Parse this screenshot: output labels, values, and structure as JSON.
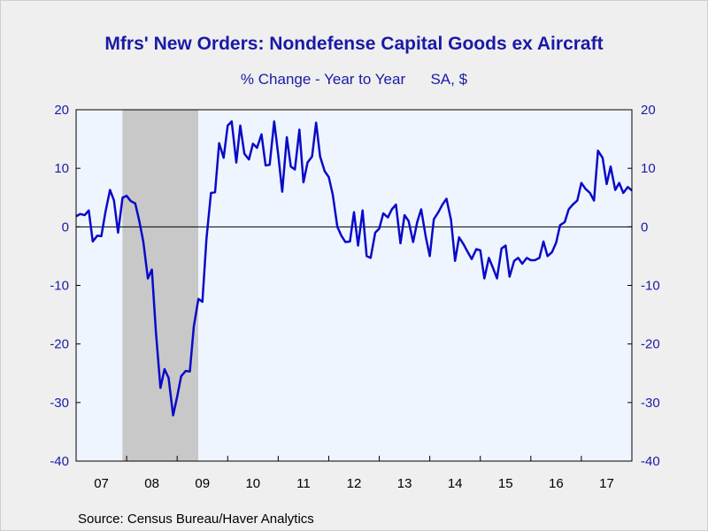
{
  "chart_data": {
    "type": "line",
    "title": "Mfrs' New Orders: Nondefense Capital Goods ex Aircraft",
    "subtitle_left": "% Change - Year to Year",
    "subtitle_right": "SA, $",
    "source": "Source:  Census Bureau/Haver Analytics",
    "ylim": [
      -40,
      20
    ],
    "yticks": [
      20,
      10,
      0,
      -10,
      -20,
      -30,
      -40
    ],
    "xlim": [
      2007.0,
      2018.0
    ],
    "xtick_labels": [
      "07",
      "08",
      "09",
      "10",
      "11",
      "12",
      "13",
      "14",
      "15",
      "16",
      "17"
    ],
    "recession": {
      "start": 2007.917,
      "end": 2009.417
    },
    "grid": false,
    "zero_line": true,
    "colors": {
      "line": "#0a0ac8",
      "text": "#1a1aa6",
      "plot_bg": "#eef5ff",
      "recession": "#c8c8c8"
    },
    "series": [
      {
        "values": [
          [
            2007.0,
            1.8
          ],
          [
            2007.08,
            2.2
          ],
          [
            2007.17,
            2.0
          ],
          [
            2007.25,
            2.8
          ],
          [
            2007.33,
            -2.5
          ],
          [
            2007.42,
            -1.5
          ],
          [
            2007.5,
            -1.6
          ],
          [
            2007.58,
            2.5
          ],
          [
            2007.67,
            6.3
          ],
          [
            2007.75,
            4.5
          ],
          [
            2007.83,
            -1.0
          ],
          [
            2007.92,
            5.0
          ],
          [
            2008.0,
            5.3
          ],
          [
            2008.08,
            4.4
          ],
          [
            2008.17,
            4.0
          ],
          [
            2008.25,
            1.0
          ],
          [
            2008.33,
            -2.5
          ],
          [
            2008.42,
            -8.8
          ],
          [
            2008.5,
            -7.3
          ],
          [
            2008.58,
            -18.0
          ],
          [
            2008.67,
            -27.5
          ],
          [
            2008.75,
            -24.3
          ],
          [
            2008.83,
            -25.8
          ],
          [
            2008.92,
            -32.2
          ],
          [
            2009.0,
            -29.0
          ],
          [
            2009.08,
            -25.5
          ],
          [
            2009.17,
            -24.6
          ],
          [
            2009.25,
            -24.7
          ],
          [
            2009.33,
            -17.0
          ],
          [
            2009.42,
            -12.3
          ],
          [
            2009.5,
            -12.8
          ],
          [
            2009.58,
            -2.0
          ],
          [
            2009.67,
            5.8
          ],
          [
            2009.75,
            5.9
          ],
          [
            2009.83,
            14.3
          ],
          [
            2009.92,
            11.8
          ],
          [
            2010.0,
            17.3
          ],
          [
            2010.08,
            18.0
          ],
          [
            2010.17,
            11.0
          ],
          [
            2010.25,
            17.3
          ],
          [
            2010.33,
            12.5
          ],
          [
            2010.42,
            11.5
          ],
          [
            2010.5,
            14.2
          ],
          [
            2010.58,
            13.5
          ],
          [
            2010.67,
            15.8
          ],
          [
            2010.75,
            10.5
          ],
          [
            2010.83,
            10.6
          ],
          [
            2010.92,
            18.0
          ],
          [
            2011.0,
            12.3
          ],
          [
            2011.08,
            6.0
          ],
          [
            2011.17,
            15.3
          ],
          [
            2011.25,
            10.3
          ],
          [
            2011.33,
            9.8
          ],
          [
            2011.42,
            16.6
          ],
          [
            2011.5,
            7.6
          ],
          [
            2011.58,
            11.0
          ],
          [
            2011.67,
            12.0
          ],
          [
            2011.75,
            17.8
          ],
          [
            2011.83,
            12.0
          ],
          [
            2011.92,
            9.5
          ],
          [
            2012.0,
            8.5
          ],
          [
            2012.08,
            5.5
          ],
          [
            2012.17,
            0.0
          ],
          [
            2012.25,
            -1.5
          ],
          [
            2012.33,
            -2.6
          ],
          [
            2012.42,
            -2.5
          ],
          [
            2012.5,
            2.5
          ],
          [
            2012.58,
            -3.2
          ],
          [
            2012.67,
            2.8
          ],
          [
            2012.75,
            -5.0
          ],
          [
            2012.83,
            -5.3
          ],
          [
            2012.92,
            -1.0
          ],
          [
            2013.0,
            -0.3
          ],
          [
            2013.08,
            2.3
          ],
          [
            2013.17,
            1.6
          ],
          [
            2013.25,
            3.0
          ],
          [
            2013.33,
            3.8
          ],
          [
            2013.42,
            -2.8
          ],
          [
            2013.5,
            2.0
          ],
          [
            2013.58,
            1.0
          ],
          [
            2013.67,
            -2.6
          ],
          [
            2013.75,
            0.8
          ],
          [
            2013.83,
            3.0
          ],
          [
            2013.92,
            -1.7
          ],
          [
            2014.0,
            -5.0
          ],
          [
            2014.08,
            1.3
          ],
          [
            2014.17,
            2.5
          ],
          [
            2014.25,
            3.8
          ],
          [
            2014.33,
            4.8
          ],
          [
            2014.42,
            1.2
          ],
          [
            2014.5,
            -5.8
          ],
          [
            2014.58,
            -1.8
          ],
          [
            2014.67,
            -3.0
          ],
          [
            2014.75,
            -4.3
          ],
          [
            2014.83,
            -5.5
          ],
          [
            2014.92,
            -3.8
          ],
          [
            2015.0,
            -4.0
          ],
          [
            2015.08,
            -8.8
          ],
          [
            2015.17,
            -5.3
          ],
          [
            2015.25,
            -7.0
          ],
          [
            2015.33,
            -8.8
          ],
          [
            2015.42,
            -3.7
          ],
          [
            2015.5,
            -3.2
          ],
          [
            2015.58,
            -8.5
          ],
          [
            2015.67,
            -5.8
          ],
          [
            2015.75,
            -5.3
          ],
          [
            2015.83,
            -6.3
          ],
          [
            2015.92,
            -5.3
          ],
          [
            2016.0,
            -5.7
          ],
          [
            2016.08,
            -5.7
          ],
          [
            2016.17,
            -5.3
          ],
          [
            2016.25,
            -2.5
          ],
          [
            2016.33,
            -5.0
          ],
          [
            2016.42,
            -4.3
          ],
          [
            2016.5,
            -2.7
          ],
          [
            2016.58,
            0.3
          ],
          [
            2016.67,
            0.8
          ],
          [
            2016.75,
            3.0
          ],
          [
            2016.83,
            3.8
          ],
          [
            2016.92,
            4.5
          ],
          [
            2017.0,
            7.5
          ],
          [
            2017.08,
            6.5
          ],
          [
            2017.17,
            5.8
          ],
          [
            2017.25,
            4.5
          ],
          [
            2017.33,
            13.0
          ],
          [
            2017.42,
            11.8
          ],
          [
            2017.5,
            7.3
          ],
          [
            2017.58,
            10.3
          ],
          [
            2017.67,
            6.3
          ],
          [
            2017.75,
            7.5
          ],
          [
            2017.83,
            5.8
          ],
          [
            2017.92,
            6.8
          ],
          [
            2018.0,
            6.2
          ]
        ]
      }
    ]
  }
}
